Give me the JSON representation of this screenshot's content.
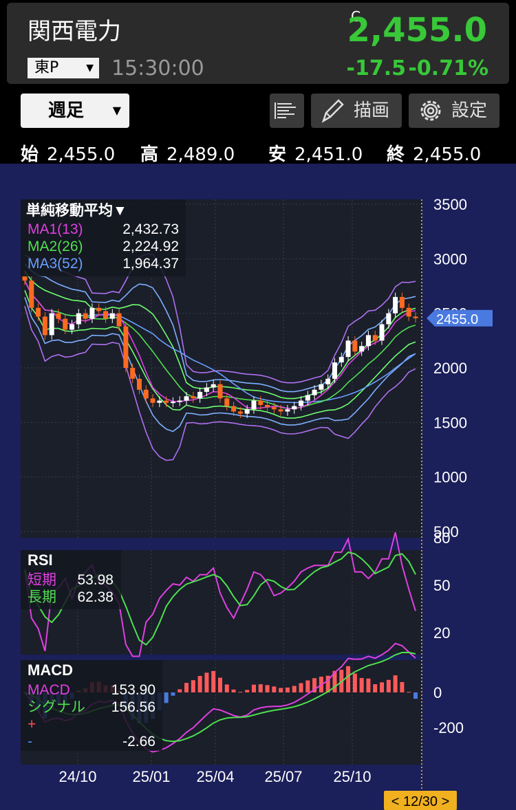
{
  "header": {
    "stock_name": "関西電力",
    "market": "東P",
    "time": "15:30:00",
    "price_flag": "C",
    "price": "2,455.0",
    "change": "-17.5",
    "change_pct": "-0.71%",
    "up_color": "#38c838"
  },
  "toolbar": {
    "period": "週足",
    "draw_label": "描画",
    "settings_label": "設定"
  },
  "ohlc": {
    "open_label": "始",
    "open": "2,455.0",
    "high_label": "高",
    "high": "2,489.0",
    "low_label": "安",
    "low": "2,451.0",
    "close_label": "終",
    "close": "2,455.0"
  },
  "colors": {
    "ma1": "#e040e0",
    "ma2": "#50e050",
    "ma3": "#6aa0ff",
    "candle_up": "#ffffff",
    "candle_down": "#ff6a20",
    "bb_outer": "#b070f0",
    "bb_inner2": "#70ff70",
    "bb_inner3": "#80b0ff"
  },
  "chart_data": [
    {
      "type": "candlestick",
      "legend_title": "単純移動平均▼",
      "series": [
        {
          "name": "MA1(13)",
          "value": "2,432.73"
        },
        {
          "name": "MA2(26)",
          "value": "2,224.92"
        },
        {
          "name": "MA3(52)",
          "value": "1,964.37"
        }
      ],
      "y_ticks": [
        "3500",
        "3000",
        "2500",
        "2000",
        "1500",
        "1000",
        "500"
      ],
      "ylim": [
        500,
        3500
      ],
      "x_ticks": [
        "24/10",
        "25/01",
        "25/04",
        "25/07",
        "25/10"
      ],
      "current_price_label": "2455.0",
      "cursor_date": "< 12/30 >",
      "price_path": [
        2800,
        2550,
        2470,
        2300,
        2500,
        2450,
        2350,
        2400,
        2500,
        2450,
        2550,
        2520,
        2450,
        2500,
        2380,
        2000,
        1900,
        1800,
        1720,
        1680,
        1700,
        1680,
        1690,
        1700,
        1740,
        1720,
        1780,
        1820,
        1850,
        1720,
        1650,
        1600,
        1580,
        1620,
        1700,
        1660,
        1640,
        1620,
        1600,
        1620,
        1650,
        1700,
        1750,
        1800,
        1850,
        1900,
        2050,
        2100,
        2250,
        2150,
        2200,
        2300,
        2250,
        2400,
        2500,
        2650,
        2550,
        2470,
        2455
      ]
    },
    {
      "type": "line",
      "title": "RSI",
      "series": [
        {
          "name": "短期",
          "value": "53.98"
        },
        {
          "name": "長期",
          "value": "62.38"
        }
      ],
      "y_ticks": [
        "80",
        "50",
        "20"
      ],
      "ylim": [
        0,
        100
      ]
    },
    {
      "type": "line",
      "title": "MACD",
      "series": [
        {
          "name": "MACD",
          "value": "153.90"
        },
        {
          "name": "シグナル",
          "value": "156.56"
        },
        {
          "name": "+",
          "value": ""
        },
        {
          "name": "-",
          "value": "-2.66"
        }
      ],
      "y_ticks": [
        "0",
        "-200"
      ]
    }
  ]
}
